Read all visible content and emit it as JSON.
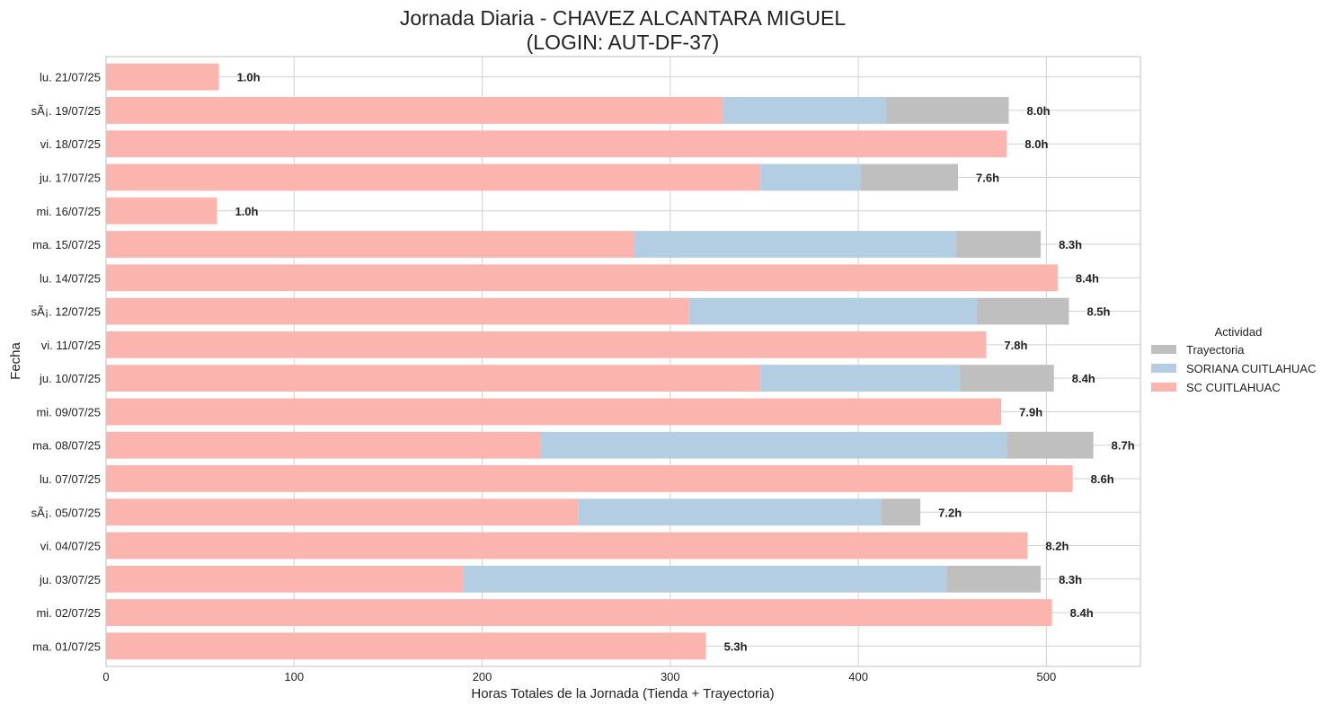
{
  "chart_data": {
    "type": "bar",
    "orientation": "horizontal",
    "stacked": true,
    "title_line1": "Jornada Diaria - CHAVEZ ALCANTARA MIGUEL",
    "title_line2": "(LOGIN: AUT-DF-37)",
    "xlabel": "Horas Totales de la Jornada (Tienda + Trayectoria)",
    "ylabel": "Fecha",
    "xlim": [
      0,
      550
    ],
    "xticks": [
      0,
      100,
      200,
      300,
      400,
      500
    ],
    "grid": true,
    "legend": {
      "title": "Actividad",
      "placement": "right",
      "entries": [
        {
          "label": "Trayectoria",
          "color": "#bfbfbf",
          "series": "trayectoria"
        },
        {
          "label": "SORIANA CUITLAHUAC",
          "color": "#b3cde3",
          "series": "soriana"
        },
        {
          "label": "SC CUITLAHUAC",
          "color": "#fbb4ae",
          "series": "sc"
        }
      ]
    },
    "series_order": [
      "sc",
      "soriana",
      "trayectoria"
    ],
    "colors": {
      "sc": "#fbb4ae",
      "soriana": "#b3cde3",
      "trayectoria": "#bfbfbf"
    },
    "rows": [
      {
        "date": "lu. 21/07/25",
        "sc": 60,
        "soriana": 0,
        "trayectoria": 0,
        "label": "1.0h"
      },
      {
        "date": "sÃ¡. 19/07/25",
        "sc": 328,
        "soriana": 87,
        "trayectoria": 65,
        "label": "8.0h"
      },
      {
        "date": "vi. 18/07/25",
        "sc": 479,
        "soriana": 0,
        "trayectoria": 0,
        "label": "8.0h"
      },
      {
        "date": "ju. 17/07/25",
        "sc": 348,
        "soriana": 53,
        "trayectoria": 52,
        "label": "7.6h"
      },
      {
        "date": "mi. 16/07/25",
        "sc": 59,
        "soriana": 0,
        "trayectoria": 0,
        "label": "1.0h"
      },
      {
        "date": "ma. 15/07/25",
        "sc": 281,
        "soriana": 171,
        "trayectoria": 45,
        "label": "8.3h"
      },
      {
        "date": "lu. 14/07/25",
        "sc": 506,
        "soriana": 0,
        "trayectoria": 0,
        "label": "8.4h"
      },
      {
        "date": "sÃ¡. 12/07/25",
        "sc": 310,
        "soriana": 153,
        "trayectoria": 49,
        "label": "8.5h"
      },
      {
        "date": "vi. 11/07/25",
        "sc": 468,
        "soriana": 0,
        "trayectoria": 0,
        "label": "7.8h"
      },
      {
        "date": "ju. 10/07/25",
        "sc": 348,
        "soriana": 106,
        "trayectoria": 50,
        "label": "8.4h"
      },
      {
        "date": "mi. 09/07/25",
        "sc": 476,
        "soriana": 0,
        "trayectoria": 0,
        "label": "7.9h"
      },
      {
        "date": "ma. 08/07/25",
        "sc": 231,
        "soriana": 248,
        "trayectoria": 46,
        "label": "8.7h"
      },
      {
        "date": "lu. 07/07/25",
        "sc": 514,
        "soriana": 0,
        "trayectoria": 0,
        "label": "8.6h"
      },
      {
        "date": "sÃ¡. 05/07/25",
        "sc": 251,
        "soriana": 161,
        "trayectoria": 21,
        "label": "7.2h"
      },
      {
        "date": "vi. 04/07/25",
        "sc": 490,
        "soriana": 0,
        "trayectoria": 0,
        "label": "8.2h"
      },
      {
        "date": "ju. 03/07/25",
        "sc": 190,
        "soriana": 257,
        "trayectoria": 50,
        "label": "8.3h"
      },
      {
        "date": "mi. 02/07/25",
        "sc": 503,
        "soriana": 0,
        "trayectoria": 0,
        "label": "8.4h"
      },
      {
        "date": "ma. 01/07/25",
        "sc": 319,
        "soriana": 0,
        "trayectoria": 0,
        "label": "5.3h"
      }
    ]
  }
}
